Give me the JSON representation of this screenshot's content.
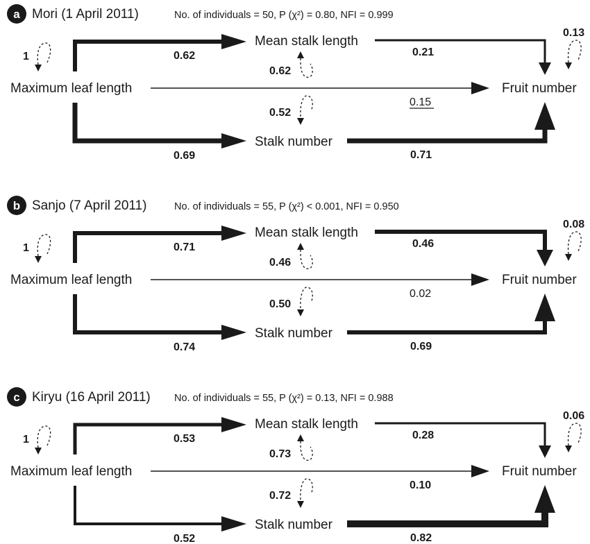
{
  "panels": [
    {
      "letter": "a",
      "title": "Mori (1 April 2011)",
      "stats": "No. of individuals = 50, P (χ²) = 0.80, NFI = 0.999",
      "nodes": {
        "leaf": "Maximum leaf length",
        "mean_stalk": "Mean stalk length",
        "stalk_num": "Stalk number",
        "fruit": "Fruit number"
      },
      "coefficients": {
        "leaf_to_mean_stalk": "0.62",
        "leaf_to_stalk_num": "0.69",
        "mean_stalk_to_fruit": "0.21",
        "stalk_num_to_fruit": "0.71",
        "leaf_to_fruit": "0.15",
        "leaf_r2": "1",
        "mean_stalk_r2": "0.62",
        "stalk_num_r2": "0.52",
        "fruit_r2": "0.13"
      },
      "leaf_to_fruit_underlined": true,
      "leaf_to_fruit_bold": false
    },
    {
      "letter": "b",
      "title": "Sanjo (7 April 2011)",
      "stats": "No. of individuals = 55, P (χ²) < 0.001, NFI = 0.950",
      "nodes": {
        "leaf": "Maximum leaf length",
        "mean_stalk": "Mean stalk length",
        "stalk_num": "Stalk number",
        "fruit": "Fruit number"
      },
      "coefficients": {
        "leaf_to_mean_stalk": "0.71",
        "leaf_to_stalk_num": "0.74",
        "mean_stalk_to_fruit": "0.46",
        "stalk_num_to_fruit": "0.69",
        "leaf_to_fruit": "0.02",
        "leaf_r2": "1",
        "mean_stalk_r2": "0.46",
        "stalk_num_r2": "0.50",
        "fruit_r2": "0.08"
      },
      "leaf_to_fruit_underlined": false,
      "leaf_to_fruit_bold": false
    },
    {
      "letter": "c",
      "title": "Kiryu (16 April 2011)",
      "stats": "No. of individuals = 55, P (χ²) = 0.13, NFI = 0.988",
      "nodes": {
        "leaf": "Maximum leaf length",
        "mean_stalk": "Mean stalk length",
        "stalk_num": "Stalk number",
        "fruit": "Fruit number"
      },
      "coefficients": {
        "leaf_to_mean_stalk": "0.53",
        "leaf_to_stalk_num": "0.52",
        "mean_stalk_to_fruit": "0.28",
        "stalk_num_to_fruit": "0.82",
        "leaf_to_fruit": "0.10",
        "leaf_r2": "1",
        "mean_stalk_r2": "0.73",
        "stalk_num_r2": "0.72",
        "fruit_r2": "0.06"
      },
      "leaf_to_fruit_underlined": false,
      "leaf_to_fruit_bold": true
    }
  ],
  "colors": {
    "ink": "#1a1a1a",
    "badge": "#1a1a1a",
    "background": "#ffffff"
  }
}
